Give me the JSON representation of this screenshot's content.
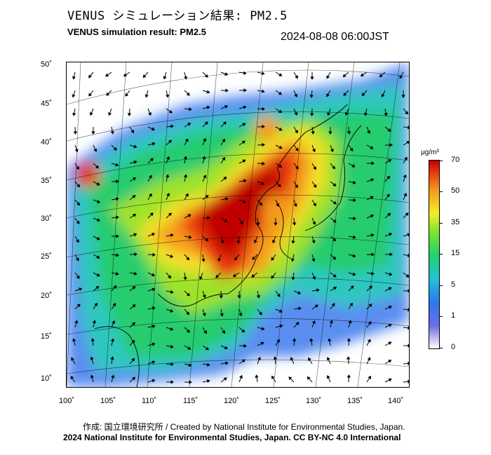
{
  "header": {
    "title_jp": "VENUS シミュレーション結果: PM2.5",
    "title_en": "VENUS simulation result: PM2.5",
    "timestamp": "2024-08-08 06:00JST"
  },
  "map": {
    "lat_labels": [
      "50˚",
      "45˚",
      "40˚",
      "35˚",
      "30˚",
      "25˚",
      "20˚",
      "15˚",
      "10˚"
    ],
    "lon_labels": [
      "100˚",
      "105˚",
      "110˚",
      "115˚",
      "120˚",
      "125˚",
      "130˚",
      "135˚",
      "140˚"
    ],
    "lat_range": [
      10,
      50
    ],
    "lon_range": [
      100,
      140
    ]
  },
  "colorbar": {
    "unit": "μg/m³",
    "ticks": [
      "70",
      "50",
      "35",
      "15",
      "5",
      "1",
      "0"
    ],
    "colors": {
      "max": "#c00000",
      "high": "#e8360e",
      "mid_high": "#f59a1a",
      "mid": "#f3ef2a",
      "mid_low": "#24d36b",
      "low": "#22c2d8",
      "very_low": "#2c78f0",
      "min": "#6d6de8"
    }
  },
  "footer": {
    "credit": "作成: 国立環境研究所 / Created by National Institute for Environmental Studies, Japan.",
    "license": "2024 National Institute for Environmental Studies, Japan. CC BY-NC 4.0 International"
  }
}
